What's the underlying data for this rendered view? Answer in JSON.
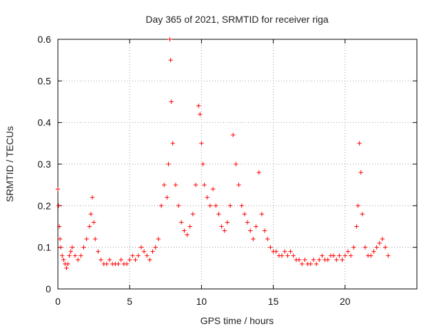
{
  "chart_data": {
    "type": "scatter",
    "title": "Day 365 of 2021, SRMTID for receiver riga",
    "xlabel": "GPS time / hours",
    "ylabel": "SRMTID / TECUs",
    "xlim": [
      0,
      25
    ],
    "ylim": [
      0,
      0.6
    ],
    "xticks": [
      0,
      5,
      10,
      15,
      20
    ],
    "xtick_labels": [
      "0",
      "5",
      "10",
      "15",
      "20"
    ],
    "yticks": [
      0,
      0.1,
      0.2,
      0.3,
      0.4,
      0.5,
      0.6
    ],
    "ytick_labels": [
      "0",
      "0.1",
      "0.2",
      "0.3",
      "0.4",
      "0.5",
      "0.6"
    ],
    "grid": true,
    "marker": "+",
    "color": "#ff0000",
    "series": [
      {
        "name": "SRMTID",
        "x": [
          0.0,
          0.05,
          0.1,
          0.15,
          0.2,
          0.3,
          0.4,
          0.5,
          0.6,
          0.7,
          0.8,
          0.9,
          1.0,
          1.2,
          1.4,
          1.6,
          1.8,
          2.0,
          2.2,
          2.3,
          2.4,
          2.5,
          2.6,
          2.8,
          3.0,
          3.2,
          3.4,
          3.6,
          3.8,
          4.0,
          4.2,
          4.4,
          4.6,
          4.8,
          5.0,
          5.2,
          5.4,
          5.6,
          5.8,
          6.0,
          6.2,
          6.4,
          6.6,
          6.8,
          7.0,
          7.2,
          7.4,
          7.6,
          7.7,
          7.8,
          7.85,
          7.9,
          8.0,
          8.2,
          8.4,
          8.6,
          8.8,
          9.0,
          9.2,
          9.4,
          9.6,
          9.8,
          9.9,
          10.0,
          10.1,
          10.2,
          10.4,
          10.6,
          10.8,
          11.0,
          11.2,
          11.4,
          11.6,
          11.8,
          12.0,
          12.2,
          12.4,
          12.6,
          12.8,
          13.0,
          13.2,
          13.4,
          13.6,
          13.8,
          14.0,
          14.2,
          14.4,
          14.6,
          14.8,
          15.0,
          15.2,
          15.4,
          15.6,
          15.8,
          16.0,
          16.2,
          16.4,
          16.6,
          16.8,
          17.0,
          17.2,
          17.4,
          17.6,
          17.8,
          18.0,
          18.2,
          18.4,
          18.6,
          18.8,
          19.0,
          19.2,
          19.4,
          19.6,
          19.8,
          20.0,
          20.2,
          20.4,
          20.6,
          20.8,
          20.9,
          21.0,
          21.1,
          21.2,
          21.4,
          21.6,
          21.8,
          22.0,
          22.2,
          22.4,
          22.6,
          22.8,
          23.0
        ],
        "y": [
          0.24,
          0.2,
          0.15,
          0.12,
          0.1,
          0.08,
          0.07,
          0.06,
          0.05,
          0.06,
          0.08,
          0.09,
          0.1,
          0.08,
          0.07,
          0.08,
          0.1,
          0.12,
          0.15,
          0.18,
          0.22,
          0.16,
          0.12,
          0.09,
          0.07,
          0.06,
          0.06,
          0.07,
          0.06,
          0.06,
          0.06,
          0.07,
          0.06,
          0.06,
          0.07,
          0.08,
          0.07,
          0.08,
          0.1,
          0.09,
          0.08,
          0.07,
          0.09,
          0.1,
          0.12,
          0.2,
          0.25,
          0.22,
          0.3,
          0.6,
          0.55,
          0.45,
          0.35,
          0.25,
          0.2,
          0.16,
          0.14,
          0.13,
          0.15,
          0.18,
          0.25,
          0.44,
          0.42,
          0.35,
          0.3,
          0.25,
          0.22,
          0.2,
          0.24,
          0.2,
          0.18,
          0.15,
          0.14,
          0.16,
          0.2,
          0.37,
          0.3,
          0.25,
          0.2,
          0.18,
          0.16,
          0.14,
          0.12,
          0.15,
          0.28,
          0.18,
          0.14,
          0.12,
          0.1,
          0.09,
          0.09,
          0.08,
          0.08,
          0.09,
          0.08,
          0.09,
          0.08,
          0.07,
          0.07,
          0.06,
          0.07,
          0.06,
          0.06,
          0.07,
          0.06,
          0.07,
          0.08,
          0.07,
          0.07,
          0.08,
          0.08,
          0.07,
          0.08,
          0.07,
          0.08,
          0.09,
          0.08,
          0.1,
          0.15,
          0.2,
          0.35,
          0.28,
          0.18,
          0.1,
          0.08,
          0.08,
          0.09,
          0.1,
          0.11,
          0.12,
          0.1,
          0.08
        ]
      }
    ]
  }
}
